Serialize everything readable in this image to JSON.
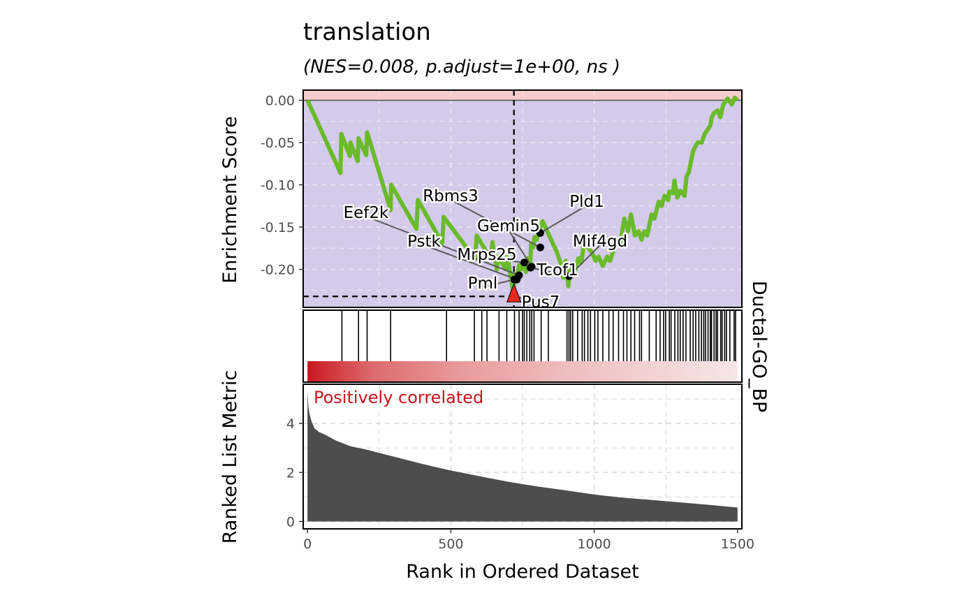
{
  "chart_data": {
    "type": "line",
    "title": "translation",
    "subtitle": "(NES=0.008, p.adjust=1e+00, ns  )",
    "xlabel": "Rank in Ordered Dataset",
    "ylabel_top": "Enrichment Score",
    "ylabel_bottom": "Ranked List Metric",
    "strip_label": "Ductal-GO_BP",
    "annotation": "Positively correlated",
    "xlim": [
      -15,
      1515
    ],
    "x_ticks": [
      0,
      500,
      1000,
      1500
    ],
    "x_tick_labels": [
      "0",
      "500",
      "1000",
      "1500"
    ],
    "es_ylim": [
      -0.245,
      0.012
    ],
    "es_ticks": [
      0.0,
      -0.05,
      -0.1,
      -0.15,
      -0.2
    ],
    "es_tick_labels": [
      "0.00",
      "-0.05",
      "-0.10",
      "-0.15",
      "-0.20"
    ],
    "metric_ylim": [
      -0.3,
      5.6
    ],
    "metric_ticks": [
      0,
      2,
      4
    ],
    "metric_tick_labels": [
      "0",
      "2",
      "4"
    ],
    "min_es": {
      "rank": 720,
      "es": -0.232
    },
    "colors": {
      "es_line": "#6aba2a",
      "panel_negative": "#d3cbe9",
      "panel_positive": "#f5cccc",
      "metric_fill": "#4d4d4d",
      "min_marker": "#e8291c",
      "heat_high": "#c8141e",
      "heat_low": "#f6e6e6",
      "annotation": "#c8141e"
    },
    "es_curve": [
      [
        0,
        0.0
      ],
      [
        115,
        -0.086
      ],
      [
        118,
        -0.04
      ],
      [
        148,
        -0.066
      ],
      [
        150,
        -0.05
      ],
      [
        175,
        -0.072
      ],
      [
        178,
        -0.045
      ],
      [
        205,
        -0.065
      ],
      [
        208,
        -0.038
      ],
      [
        290,
        -0.13
      ],
      [
        292,
        -0.1
      ],
      [
        380,
        -0.152
      ],
      [
        385,
        -0.118
      ],
      [
        470,
        -0.169
      ],
      [
        475,
        -0.138
      ],
      [
        585,
        -0.188
      ],
      [
        590,
        -0.16
      ],
      [
        640,
        -0.188
      ],
      [
        645,
        -0.168
      ],
      [
        660,
        -0.2
      ],
      [
        665,
        -0.185
      ],
      [
        692,
        -0.2
      ],
      [
        697,
        -0.185
      ],
      [
        712,
        -0.215
      ],
      [
        718,
        -0.232
      ],
      [
        722,
        -0.205
      ],
      [
        732,
        -0.208
      ],
      [
        738,
        -0.195
      ],
      [
        747,
        -0.2
      ],
      [
        752,
        -0.19
      ],
      [
        762,
        -0.203
      ],
      [
        767,
        -0.187
      ],
      [
        776,
        -0.198
      ],
      [
        780,
        -0.17
      ],
      [
        787,
        -0.174
      ],
      [
        792,
        -0.162
      ],
      [
        800,
        -0.165
      ],
      [
        805,
        -0.155
      ],
      [
        815,
        -0.148
      ],
      [
        820,
        -0.143
      ],
      [
        870,
        -0.18
      ],
      [
        885,
        -0.195
      ],
      [
        892,
        -0.21
      ],
      [
        900,
        -0.19
      ],
      [
        910,
        -0.22
      ],
      [
        914,
        -0.2
      ],
      [
        918,
        -0.208
      ],
      [
        925,
        -0.195
      ],
      [
        935,
        -0.2
      ],
      [
        945,
        -0.187
      ],
      [
        955,
        -0.192
      ],
      [
        965,
        -0.168
      ],
      [
        980,
        -0.175
      ],
      [
        992,
        -0.18
      ],
      [
        1005,
        -0.19
      ],
      [
        1015,
        -0.185
      ],
      [
        1030,
        -0.196
      ],
      [
        1045,
        -0.185
      ],
      [
        1055,
        -0.19
      ],
      [
        1065,
        -0.18
      ],
      [
        1080,
        -0.165
      ],
      [
        1090,
        -0.17
      ],
      [
        1105,
        -0.14
      ],
      [
        1118,
        -0.155
      ],
      [
        1128,
        -0.135
      ],
      [
        1142,
        -0.16
      ],
      [
        1155,
        -0.155
      ],
      [
        1165,
        -0.165
      ],
      [
        1175,
        -0.155
      ],
      [
        1185,
        -0.16
      ],
      [
        1200,
        -0.135
      ],
      [
        1210,
        -0.14
      ],
      [
        1225,
        -0.12
      ],
      [
        1235,
        -0.125
      ],
      [
        1245,
        -0.113
      ],
      [
        1258,
        -0.118
      ],
      [
        1262,
        -0.108
      ],
      [
        1275,
        -0.11
      ],
      [
        1280,
        -0.095
      ],
      [
        1290,
        -0.115
      ],
      [
        1300,
        -0.107
      ],
      [
        1315,
        -0.113
      ],
      [
        1322,
        -0.09
      ],
      [
        1330,
        -0.085
      ],
      [
        1345,
        -0.06
      ],
      [
        1360,
        -0.05
      ],
      [
        1375,
        -0.05
      ],
      [
        1385,
        -0.04
      ],
      [
        1395,
        -0.035
      ],
      [
        1405,
        -0.03
      ],
      [
        1410,
        -0.02
      ],
      [
        1418,
        -0.015
      ],
      [
        1430,
        -0.012
      ],
      [
        1440,
        -0.02
      ],
      [
        1450,
        -0.005
      ],
      [
        1465,
        0.002
      ],
      [
        1480,
        -0.005
      ],
      [
        1490,
        0.003
      ],
      [
        1500,
        0.0
      ]
    ],
    "hits": [
      120,
      178,
      208,
      290,
      485,
      582,
      608,
      626,
      668,
      695,
      722,
      738,
      750,
      756,
      765,
      775,
      782,
      790,
      815,
      840,
      905,
      912,
      918,
      925,
      942,
      958,
      966,
      978,
      987,
      1002,
      1013,
      1030,
      1051,
      1066,
      1085,
      1102,
      1114,
      1128,
      1141,
      1158,
      1165,
      1192,
      1216,
      1230,
      1242,
      1249,
      1262,
      1268,
      1281,
      1292,
      1300,
      1310,
      1320,
      1335,
      1345,
      1354,
      1365,
      1374,
      1382,
      1388,
      1397,
      1405,
      1409,
      1418,
      1425,
      1430,
      1441,
      1446,
      1455,
      1461,
      1473,
      1488,
      1493
    ],
    "metric_curve": [
      [
        0,
        5.35
      ],
      [
        3,
        4.7
      ],
      [
        8,
        4.35
      ],
      [
        15,
        4.05
      ],
      [
        25,
        3.8
      ],
      [
        40,
        3.65
      ],
      [
        60,
        3.55
      ],
      [
        100,
        3.3
      ],
      [
        150,
        3.07
      ],
      [
        200,
        2.95
      ],
      [
        300,
        2.65
      ],
      [
        400,
        2.35
      ],
      [
        500,
        2.08
      ],
      [
        600,
        1.85
      ],
      [
        700,
        1.62
      ],
      [
        800,
        1.43
      ],
      [
        900,
        1.27
      ],
      [
        1000,
        1.1
      ],
      [
        1100,
        0.97
      ],
      [
        1200,
        0.88
      ],
      [
        1300,
        0.78
      ],
      [
        1400,
        0.68
      ],
      [
        1500,
        0.57
      ]
    ],
    "gene_labels": [
      {
        "name": "Rbms3",
        "rank": 812,
        "es": -0.174
      },
      {
        "name": "Pld1",
        "rank": 812,
        "es": -0.157
      },
      {
        "name": "Eef2k",
        "rank": 738,
        "es": -0.207
      },
      {
        "name": "Gemin5",
        "rank": 782,
        "es": -0.197
      },
      {
        "name": "Pstk",
        "rank": 730,
        "es": -0.212
      },
      {
        "name": "Mif4gd",
        "rank": 912,
        "es": -0.208
      },
      {
        "name": "Mrps25",
        "rank": 756,
        "es": -0.192
      },
      {
        "name": "Tcof1",
        "rank": 778,
        "es": -0.198
      },
      {
        "name": "Pml",
        "rank": 722,
        "es": -0.212
      },
      {
        "name": "Pus7",
        "rank": 718,
        "es": -0.23
      }
    ]
  }
}
